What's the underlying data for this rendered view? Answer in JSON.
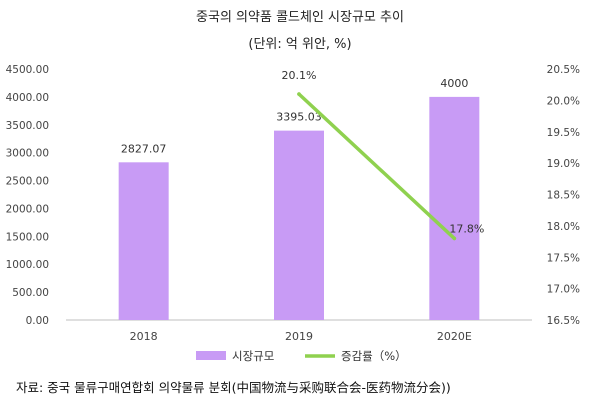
{
  "chart_data": {
    "type": "bar",
    "title": "중국의 의약품 콜드체인 시장규모 추이",
    "subtitle": "(단위: 억 위안, %)",
    "categories": [
      "2018",
      "2019",
      "2020E"
    ],
    "series": [
      {
        "name": "시장규모",
        "type": "bar",
        "axis": "left",
        "color": "#c89bf5",
        "values": [
          2827.07,
          3395.03,
          4000
        ],
        "labels": [
          "2827.07",
          "3395.03",
          "4000"
        ]
      },
      {
        "name": "증감률（%）",
        "type": "line",
        "axis": "right",
        "color": "#8fd14f",
        "values": [
          null,
          20.1,
          17.8
        ],
        "labels": [
          "",
          "20.1%",
          "17.8%"
        ]
      }
    ],
    "y_left": {
      "min": 0,
      "max": 4500,
      "step": 500,
      "ticks": [
        "0.00",
        "500.00",
        "1000.00",
        "1500.00",
        "2000.00",
        "2500.00",
        "3000.00",
        "3500.00",
        "4000.00",
        "4500.00"
      ]
    },
    "y_right": {
      "min": 16.5,
      "max": 20.5,
      "step": 0.5,
      "ticks": [
        "16.5%",
        "17.0%",
        "17.5%",
        "18.0%",
        "18.5%",
        "19.0%",
        "19.5%",
        "20.0%",
        "20.5%"
      ]
    },
    "legend": {
      "position": "bottom"
    },
    "grid": false
  },
  "source": "자료: 중국 물류구매연합회 의약물류 분회(中国物流与采购联合会-医药物流分会))"
}
